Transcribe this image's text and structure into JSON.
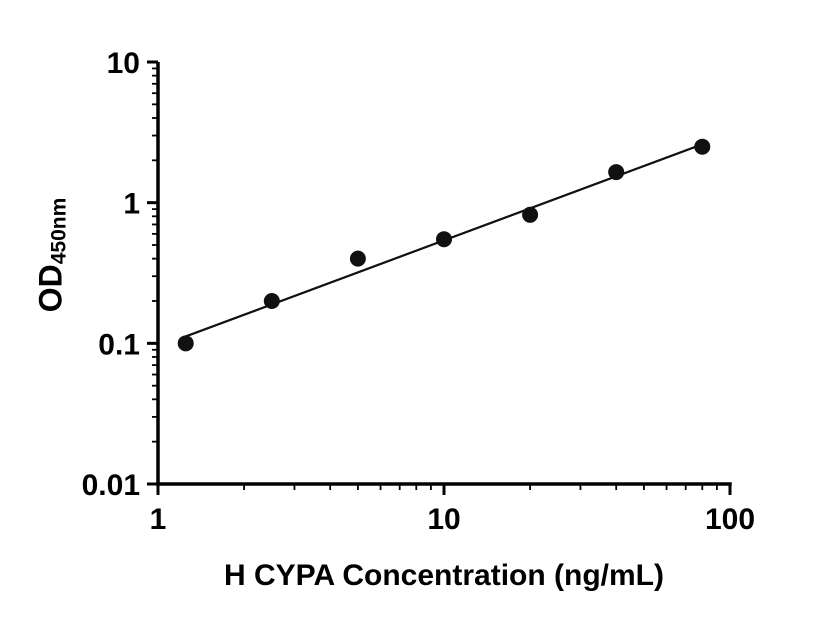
{
  "chart_data": {
    "type": "scatter",
    "title": "",
    "xlabel": "H CYPA Concentration (ng/mL)",
    "ylabel_main": "OD",
    "ylabel_sub": "450nm",
    "x_scale": "log",
    "y_scale": "log",
    "xlim": [
      1,
      100
    ],
    "ylim": [
      0.01,
      10
    ],
    "grid": "off",
    "legend": "none",
    "x_ticks": [
      {
        "value": 1,
        "label": "1"
      },
      {
        "value": 10,
        "label": "10"
      },
      {
        "value": 100,
        "label": "100"
      }
    ],
    "y_ticks": [
      {
        "value": 0.01,
        "label": "0.01"
      },
      {
        "value": 0.1,
        "label": "0.1"
      },
      {
        "value": 1,
        "label": "1"
      },
      {
        "value": 10,
        "label": "10"
      }
    ],
    "points": [
      {
        "x": 1.25,
        "y": 0.1
      },
      {
        "x": 2.5,
        "y": 0.2
      },
      {
        "x": 5,
        "y": 0.4
      },
      {
        "x": 10,
        "y": 0.55
      },
      {
        "x": 20,
        "y": 0.82
      },
      {
        "x": 40,
        "y": 1.65
      },
      {
        "x": 80,
        "y": 2.5
      }
    ],
    "trend_line": {
      "x1": 1.25,
      "y1": 0.112,
      "x2": 80,
      "y2": 2.6
    },
    "marker_color": "#111111",
    "line_color": "#111111",
    "axis_color": "#000000"
  }
}
